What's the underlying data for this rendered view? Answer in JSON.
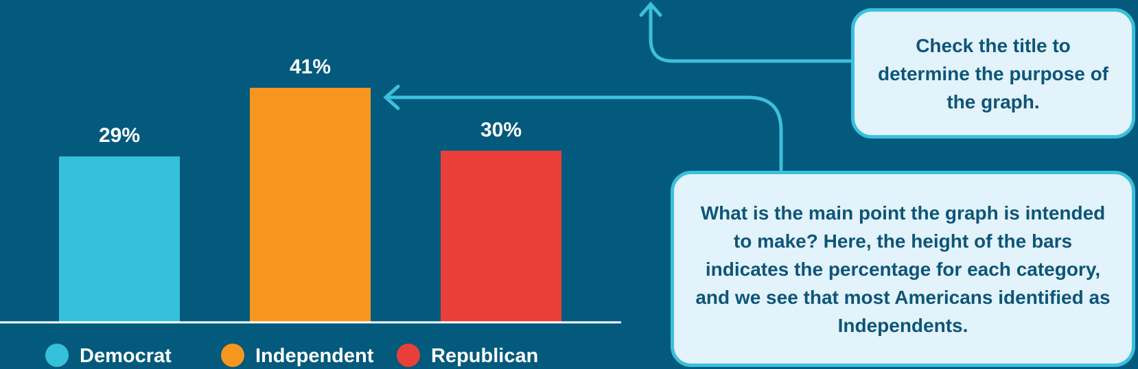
{
  "chart_data": {
    "type": "bar",
    "categories": [
      "Democrat",
      "Independent",
      "Republican"
    ],
    "values": [
      29,
      41,
      30
    ],
    "value_labels": [
      "29%",
      "41%",
      "30%"
    ],
    "colors": [
      "#35c1db",
      "#f7961f",
      "#ea3f38"
    ],
    "ylim": [
      0,
      41
    ],
    "grid": false,
    "legend": "bottom",
    "title": "",
    "xlabel": "",
    "ylabel": ""
  },
  "callouts": {
    "title_tip": "Check the title to determine the purpose of the graph.",
    "main_tip": "What is the main point the graph is intended to make? Here, the height of the bars indicates the percentage for each category, and we see that most Americans identified as Independents."
  },
  "colors": {
    "background": "#035a7d",
    "callout_fill": "#e3f3fb",
    "callout_border": "#3cc0dc",
    "callout_text": "#0d5578",
    "axis": "#ffffff"
  }
}
